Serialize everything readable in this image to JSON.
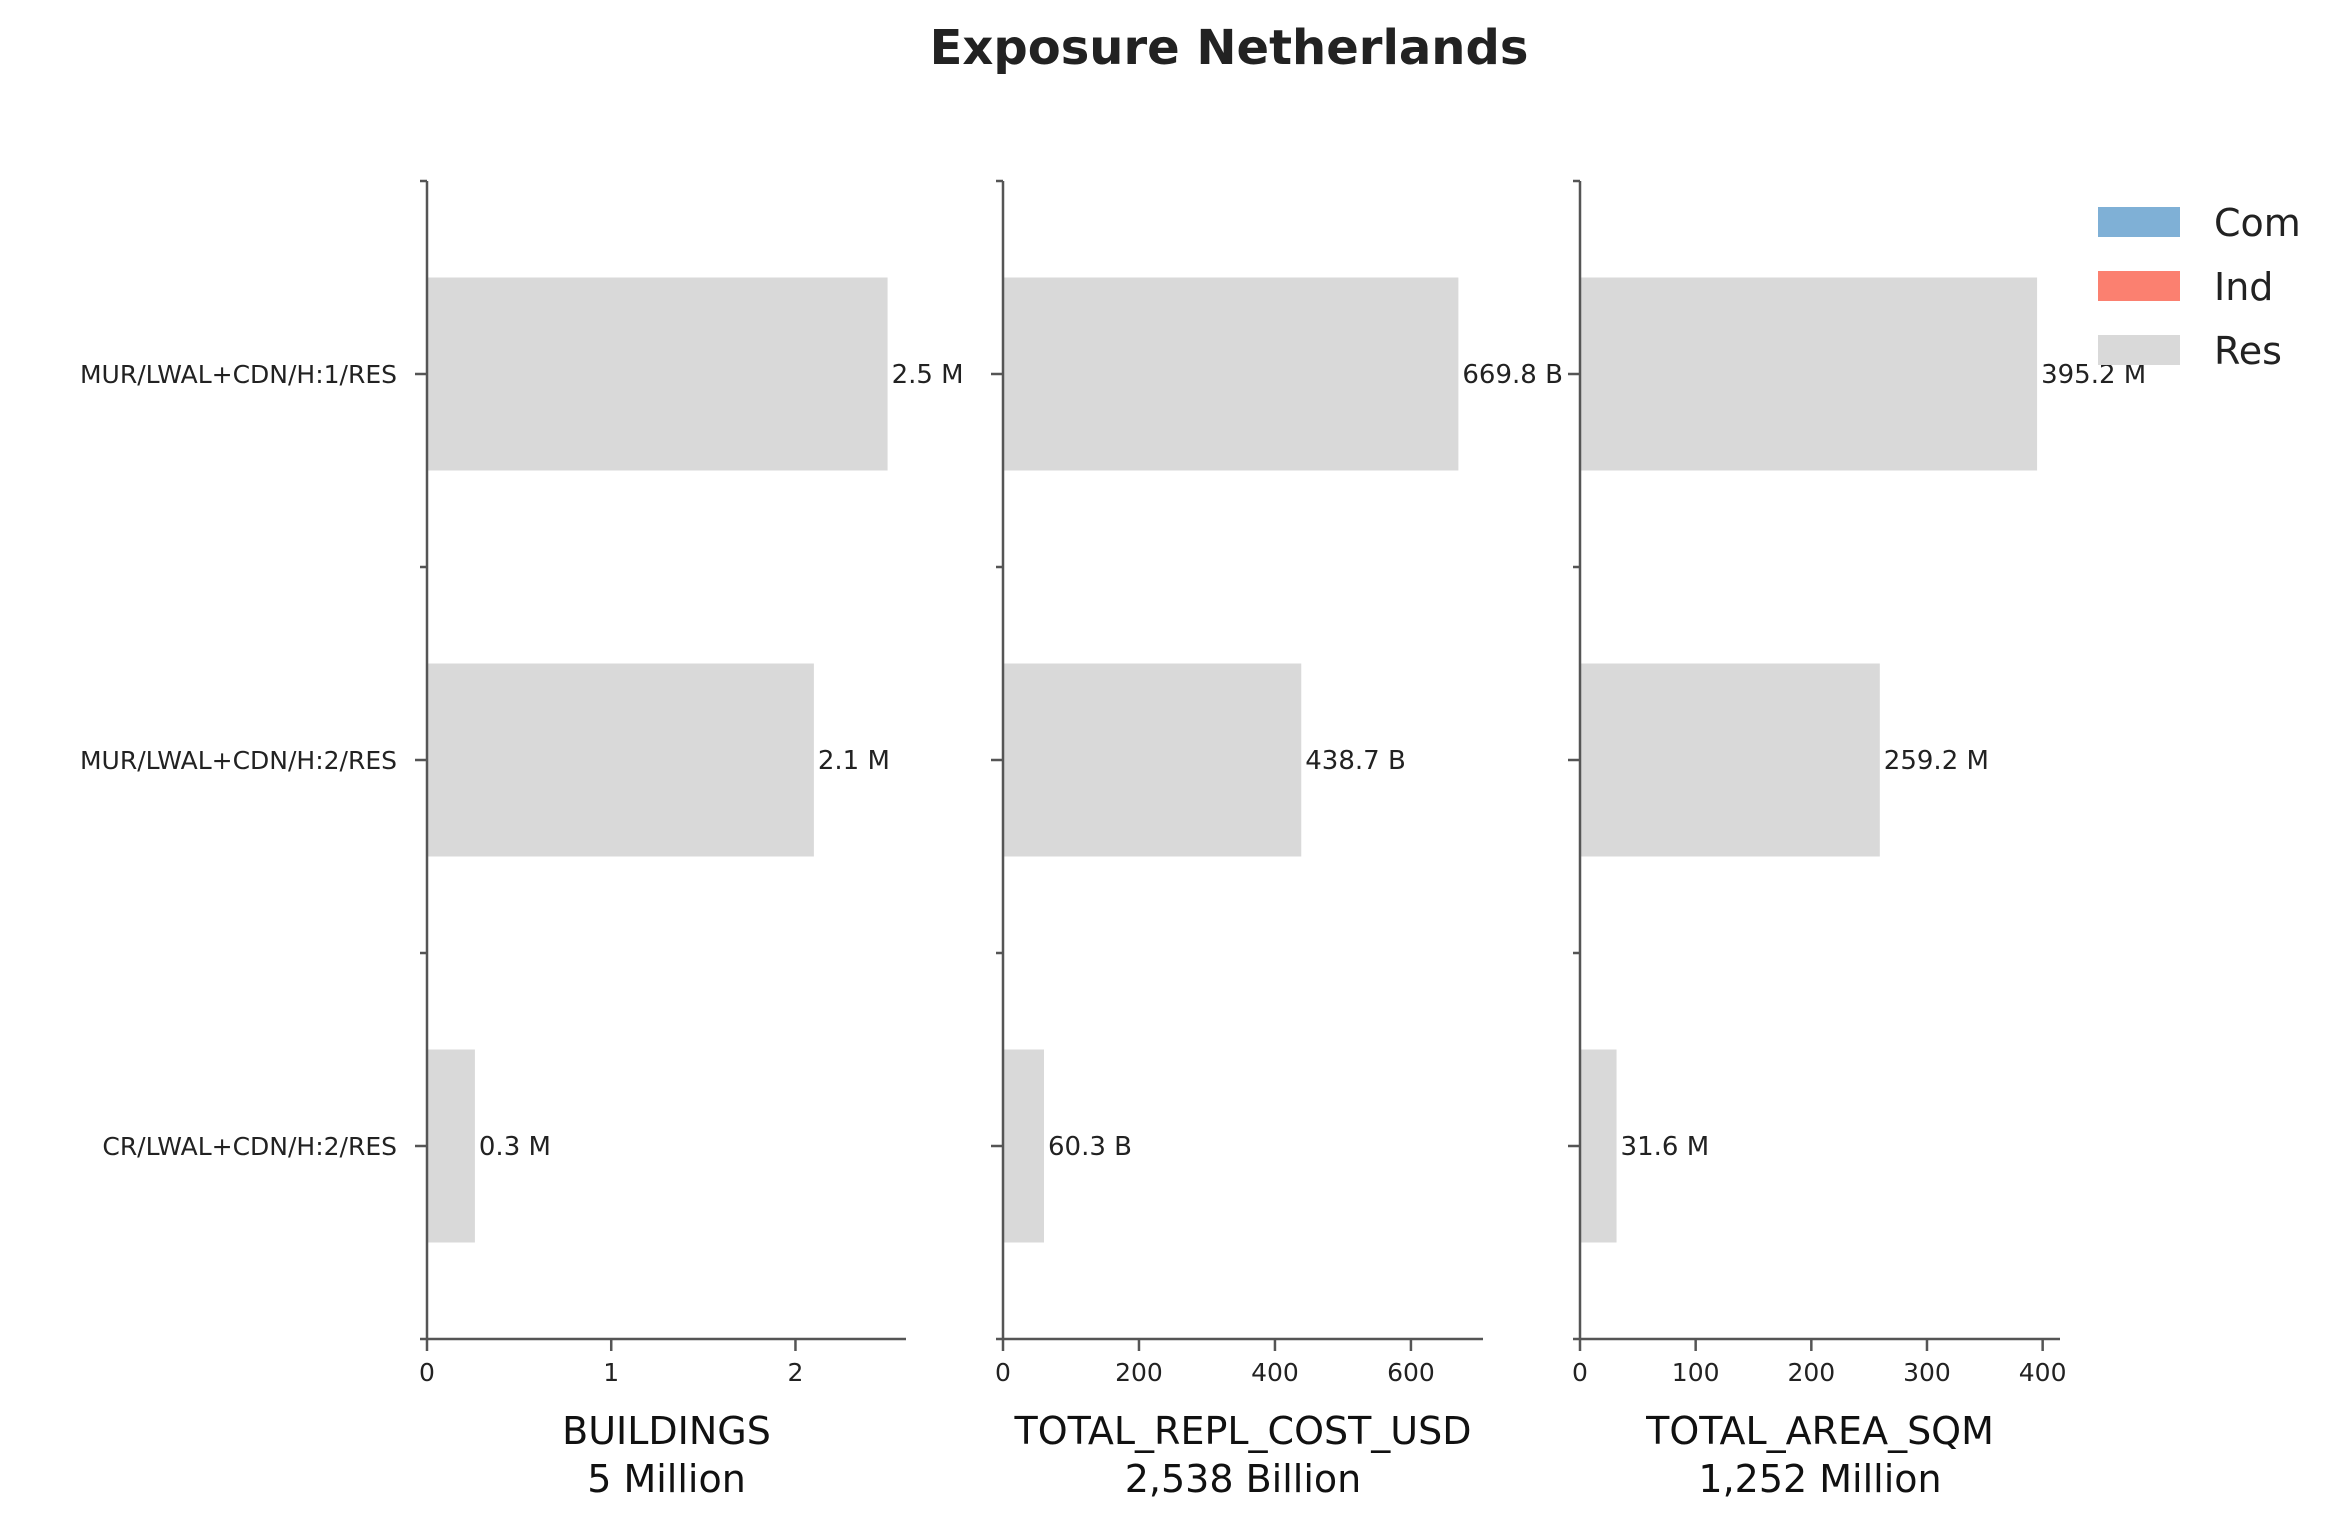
{
  "chart_data": {
    "type": "bar",
    "orientation": "horizontal",
    "title": "Exposure Netherlands",
    "categories": [
      "MUR/LWAL+CDN/H:1/RES",
      "MUR/LWAL+CDN/H:2/RES",
      "CR/LWAL+CDN/H:2/RES"
    ],
    "legend": {
      "placement": "top-right",
      "entries": [
        {
          "name": "Com",
          "color": "#7fb0d6"
        },
        {
          "name": "Ind",
          "color": "#fb8070"
        },
        {
          "name": "Res",
          "color": "#d9d9d9"
        }
      ]
    },
    "bar_color": "#d9d9d9",
    "panels": [
      {
        "xlabel": "BUILDINGS",
        "subtitle": "5 Million",
        "xlim": [
          0,
          2.6
        ],
        "xticks": [
          0,
          1,
          2
        ],
        "xtick_labels": [
          "0",
          "1",
          "2"
        ],
        "values": [
          2.5,
          2.1,
          0.26
        ],
        "labels": [
          "2.5 M",
          "2.1 M",
          "0.3 M"
        ]
      },
      {
        "xlabel": "TOTAL_REPL_COST_USD",
        "subtitle": "2,538 Billion",
        "xlim": [
          0,
          706
        ],
        "xticks": [
          0,
          200,
          400,
          600
        ],
        "xtick_labels": [
          "0",
          "200",
          "400",
          "600"
        ],
        "values": [
          669.8,
          438.7,
          60.3
        ],
        "labels": [
          "669.8 B",
          "438.7 B",
          "60.3 B"
        ]
      },
      {
        "xlabel": "TOTAL_AREA_SQM",
        "subtitle": "1,252 Million",
        "xlim": [
          0,
          415
        ],
        "xticks": [
          0,
          100,
          200,
          300,
          400
        ],
        "xtick_labels": [
          "0",
          "100",
          "200",
          "300",
          "400"
        ],
        "values": [
          395.2,
          259.2,
          31.6
        ],
        "labels": [
          "395.2 M",
          "259.2 M",
          "31.6 M"
        ]
      }
    ]
  }
}
